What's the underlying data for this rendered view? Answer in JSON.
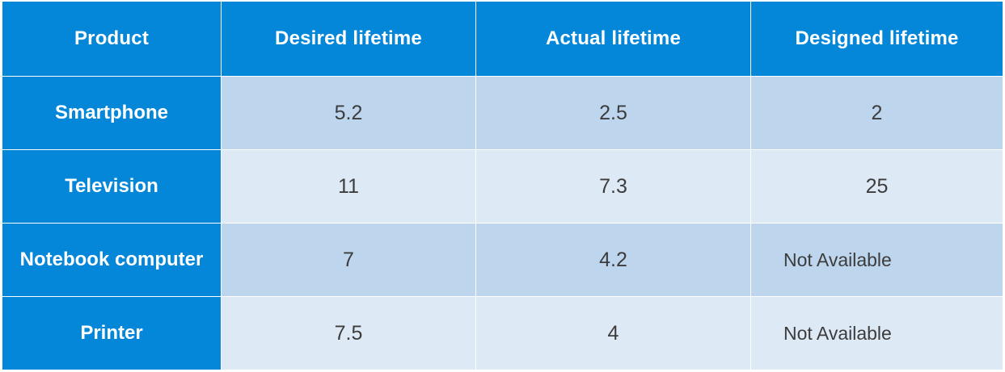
{
  "chart_data": {
    "type": "table",
    "columns": [
      "Product",
      "Desired lifetime",
      "Actual lifetime",
      "Designed lifetime"
    ],
    "rows": [
      [
        "Smartphone",
        "5.2",
        "2.5",
        "2"
      ],
      [
        "Television",
        "11",
        "7.3",
        "25"
      ],
      [
        "Notebook computer",
        "7",
        "4.2",
        "Not Available"
      ],
      [
        "Printer",
        "7.5",
        "4",
        "Not Available"
      ]
    ]
  },
  "colors": {
    "header_blue": "#0487d8",
    "row_dark": "#bdd6ee",
    "row_light": "#ddeaf6",
    "cell_text": "#3c3c3c",
    "header_text": "#ffffff"
  }
}
